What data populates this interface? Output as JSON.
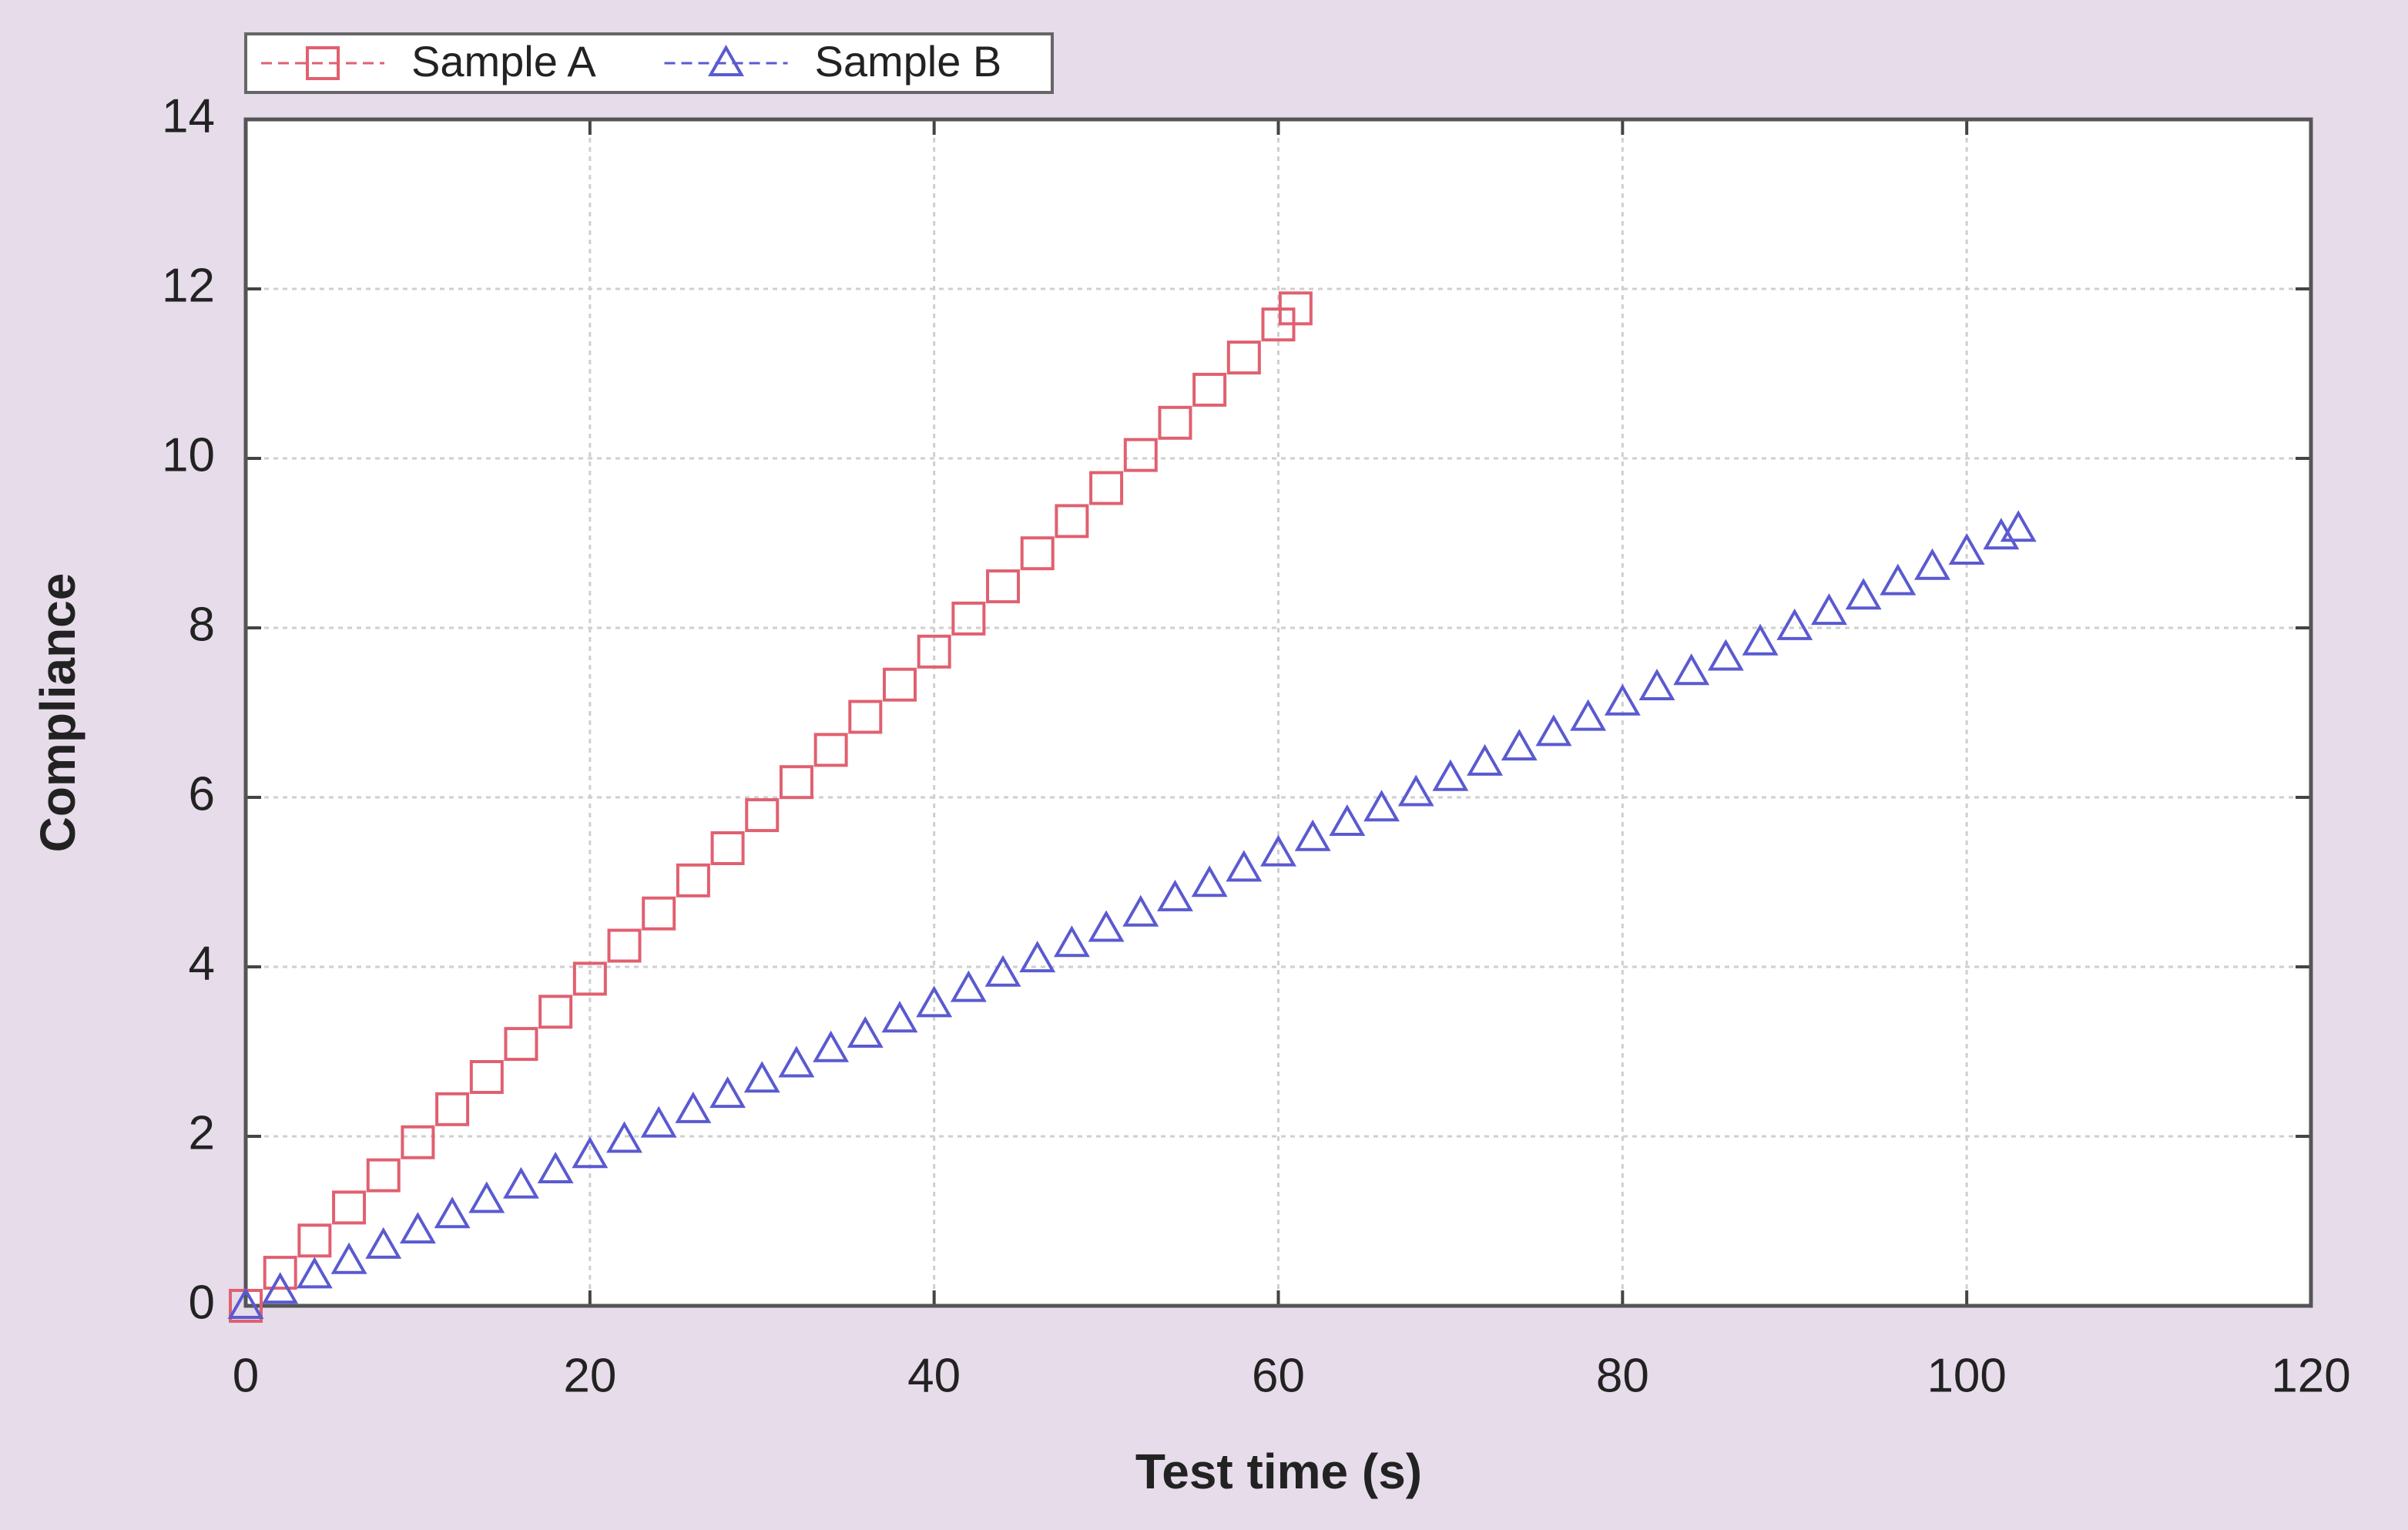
{
  "chart_data": {
    "type": "scatter",
    "xlabel": "Test time (s)",
    "ylabel": "Compliance",
    "xlim": [
      0,
      120
    ],
    "xticks": [
      0,
      20,
      40,
      60,
      80,
      100,
      120
    ],
    "ylim": [
      0,
      14
    ],
    "yticks": [
      0,
      2,
      4,
      6,
      8,
      10,
      12,
      14
    ],
    "grid": true,
    "legend": "top-left",
    "series": [
      {
        "name": "Sample A",
        "color": "#e06070",
        "marker": "square",
        "x": [
          0,
          2,
          4,
          6,
          8,
          10,
          12,
          14,
          16,
          18,
          20,
          22,
          24,
          26,
          28,
          30,
          32,
          34,
          36,
          38,
          40,
          42,
          44,
          46,
          48,
          50,
          52,
          54,
          56,
          58,
          60,
          61
        ],
        "values": [
          0,
          0.39,
          0.77,
          1.16,
          1.54,
          1.93,
          2.32,
          2.7,
          3.09,
          3.47,
          3.86,
          4.25,
          4.63,
          5.02,
          5.4,
          5.79,
          6.18,
          6.56,
          6.95,
          7.33,
          7.72,
          8.11,
          8.49,
          8.88,
          9.26,
          9.65,
          10.04,
          10.42,
          10.81,
          11.19,
          11.58,
          11.77
        ]
      },
      {
        "name": "Sample B",
        "color": "#5a5ad0",
        "marker": "triangle",
        "x": [
          0,
          2,
          4,
          6,
          8,
          10,
          12,
          14,
          16,
          18,
          20,
          22,
          24,
          26,
          28,
          30,
          32,
          34,
          36,
          38,
          40,
          42,
          44,
          46,
          48,
          50,
          52,
          54,
          56,
          58,
          60,
          62,
          64,
          66,
          68,
          70,
          72,
          74,
          76,
          78,
          80,
          82,
          84,
          86,
          88,
          90,
          92,
          94,
          96,
          98,
          100,
          102,
          103
        ],
        "values": [
          0,
          0.18,
          0.36,
          0.53,
          0.71,
          0.89,
          1.07,
          1.25,
          1.42,
          1.6,
          1.78,
          1.96,
          2.14,
          2.31,
          2.49,
          2.67,
          2.85,
          3.03,
          3.2,
          3.38,
          3.56,
          3.74,
          3.92,
          4.09,
          4.27,
          4.45,
          4.63,
          4.81,
          4.98,
          5.16,
          5.34,
          5.52,
          5.7,
          5.87,
          6.05,
          6.23,
          6.41,
          6.59,
          6.76,
          6.94,
          7.12,
          7.3,
          7.48,
          7.65,
          7.83,
          8.01,
          8.19,
          8.37,
          8.54,
          8.72,
          8.9,
          9.08,
          9.17
        ]
      }
    ]
  }
}
